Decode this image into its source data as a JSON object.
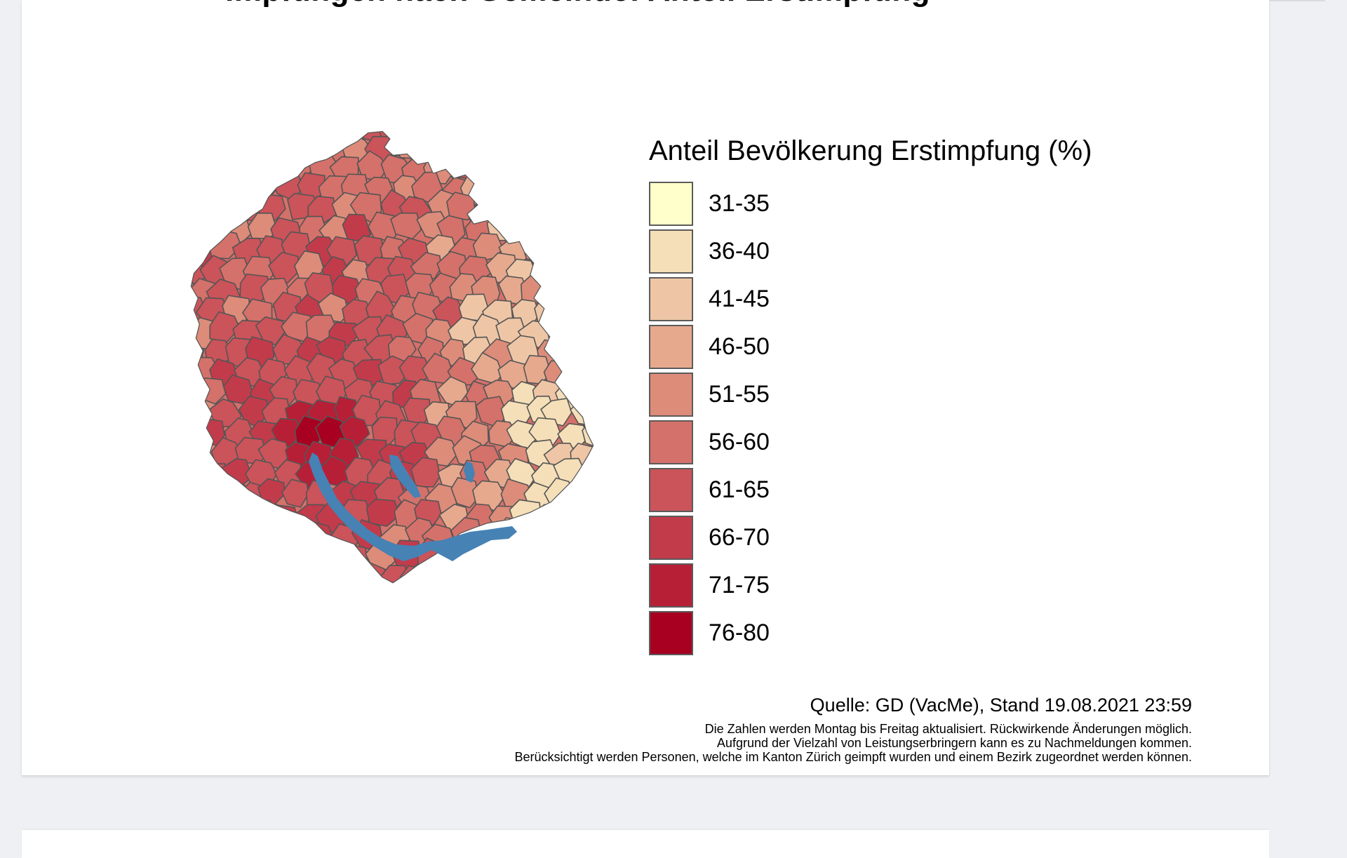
{
  "header": {
    "title": "Impfungen nach Gemeinde: Anteil Erstimpfung"
  },
  "legend": {
    "title": "Anteil Bevölkerung Erstimpfung (%)",
    "items": [
      {
        "label": "31-35",
        "color": "#ffffcc"
      },
      {
        "label": "36-40",
        "color": "#f5dfb8"
      },
      {
        "label": "41-45",
        "color": "#eec6a6"
      },
      {
        "label": "46-50",
        "color": "#e6a98e"
      },
      {
        "label": "51-55",
        "color": "#dd8c7a"
      },
      {
        "label": "56-60",
        "color": "#d4716a"
      },
      {
        "label": "61-65",
        "color": "#cb535a"
      },
      {
        "label": "66-70",
        "color": "#c23b4b"
      },
      {
        "label": "71-75",
        "color": "#b71f37"
      },
      {
        "label": "76-80",
        "color": "#a70021"
      }
    ]
  },
  "map": {
    "water_color": "#4682b4",
    "border_color": "#555555"
  },
  "footer": {
    "source": "Quelle: GD (VacMe), Stand 19.08.2021 23:59",
    "note1": "Die Zahlen werden Montag bis Freitag aktualisiert. Rückwirkende Änderungen möglich.",
    "note2": "Aufgrund der Vielzahl von Leistungserbringern kann es zu Nachmeldungen kommen.",
    "note3": "Berücksichtigt werden Personen, welche im Kanton Zürich geimpft wurden und einem Bezirk zugeordnet werden können."
  }
}
